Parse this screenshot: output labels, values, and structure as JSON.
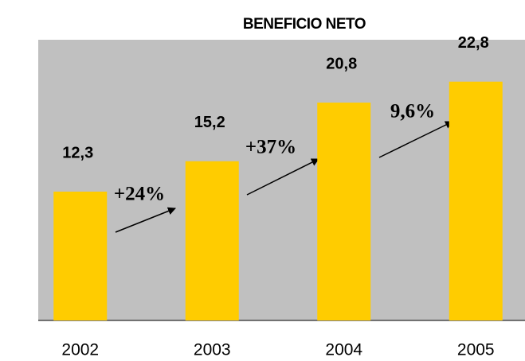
{
  "chart_data": {
    "type": "bar",
    "title": "BENEFICIO NETO",
    "categories": [
      "2002",
      "2003",
      "2004",
      "2005"
    ],
    "values": [
      12.3,
      15.2,
      20.8,
      22.8
    ],
    "value_labels": [
      "12,3",
      "15,2",
      "20,8",
      "22,8"
    ],
    "color": "#ffcc00",
    "ylim": [
      0,
      26.8
    ],
    "annotations": [
      "+24%",
      "+37%",
      "9,6%"
    ]
  }
}
